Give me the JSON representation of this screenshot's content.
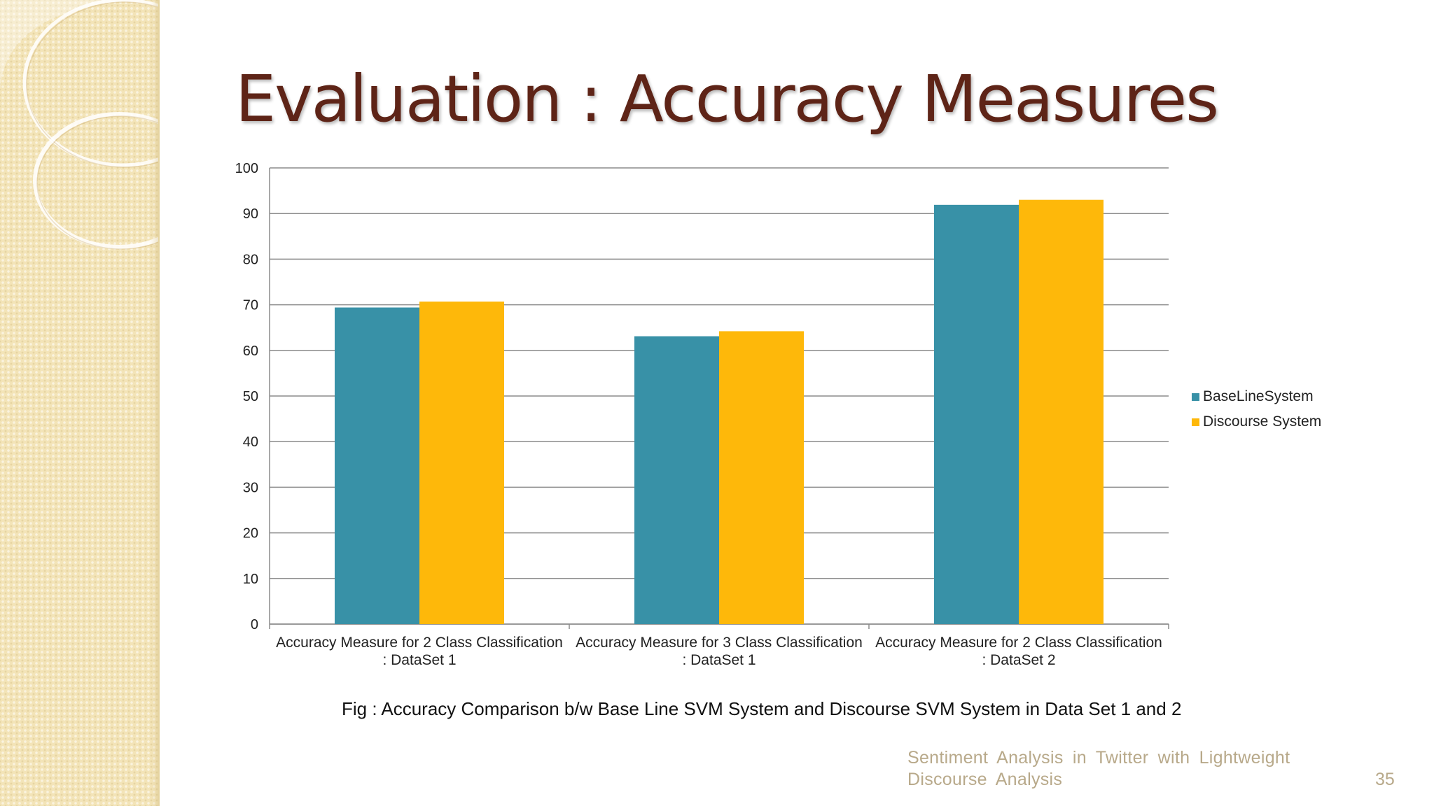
{
  "slide": {
    "title": "Evaluation : Accuracy Measures",
    "caption": "Fig : Accuracy Comparison b/w Base Line SVM System and Discourse SVM System in Data Set 1 and 2",
    "footer_line1": "Sentiment Analysis in Twitter with Lightweight",
    "footer_line2": "Discourse Analysis",
    "page_number": "35"
  },
  "colors": {
    "title": "#5e2417",
    "baseline_series": "#3891a7",
    "discourse_series": "#feb80a",
    "gridline": "#8c8c8c",
    "footer_text": "#b8a98a",
    "side_panel": "#f3e4b8"
  },
  "chart_data": {
    "type": "bar",
    "title": "",
    "xlabel": "",
    "ylabel": "",
    "categories": [
      [
        "Accuracy Measure for 2 Class Classification",
        ": DataSet 1"
      ],
      [
        "Accuracy Measure for 3 Class Classification",
        ": DataSet 1"
      ],
      [
        "Accuracy Measure for 2 Class Classification",
        ": DataSet 2"
      ]
    ],
    "series": [
      {
        "name": "BaseLineSystem",
        "color": "#3891a7",
        "values": [
          69.4,
          63.1,
          91.9
        ]
      },
      {
        "name": "Discourse System",
        "color": "#feb80a",
        "values": [
          70.7,
          64.2,
          93.0
        ]
      }
    ],
    "ylim": [
      0,
      100
    ],
    "yticks": [
      0,
      10,
      20,
      30,
      40,
      50,
      60,
      70,
      80,
      90,
      100
    ],
    "grid": true,
    "legend": "right"
  }
}
